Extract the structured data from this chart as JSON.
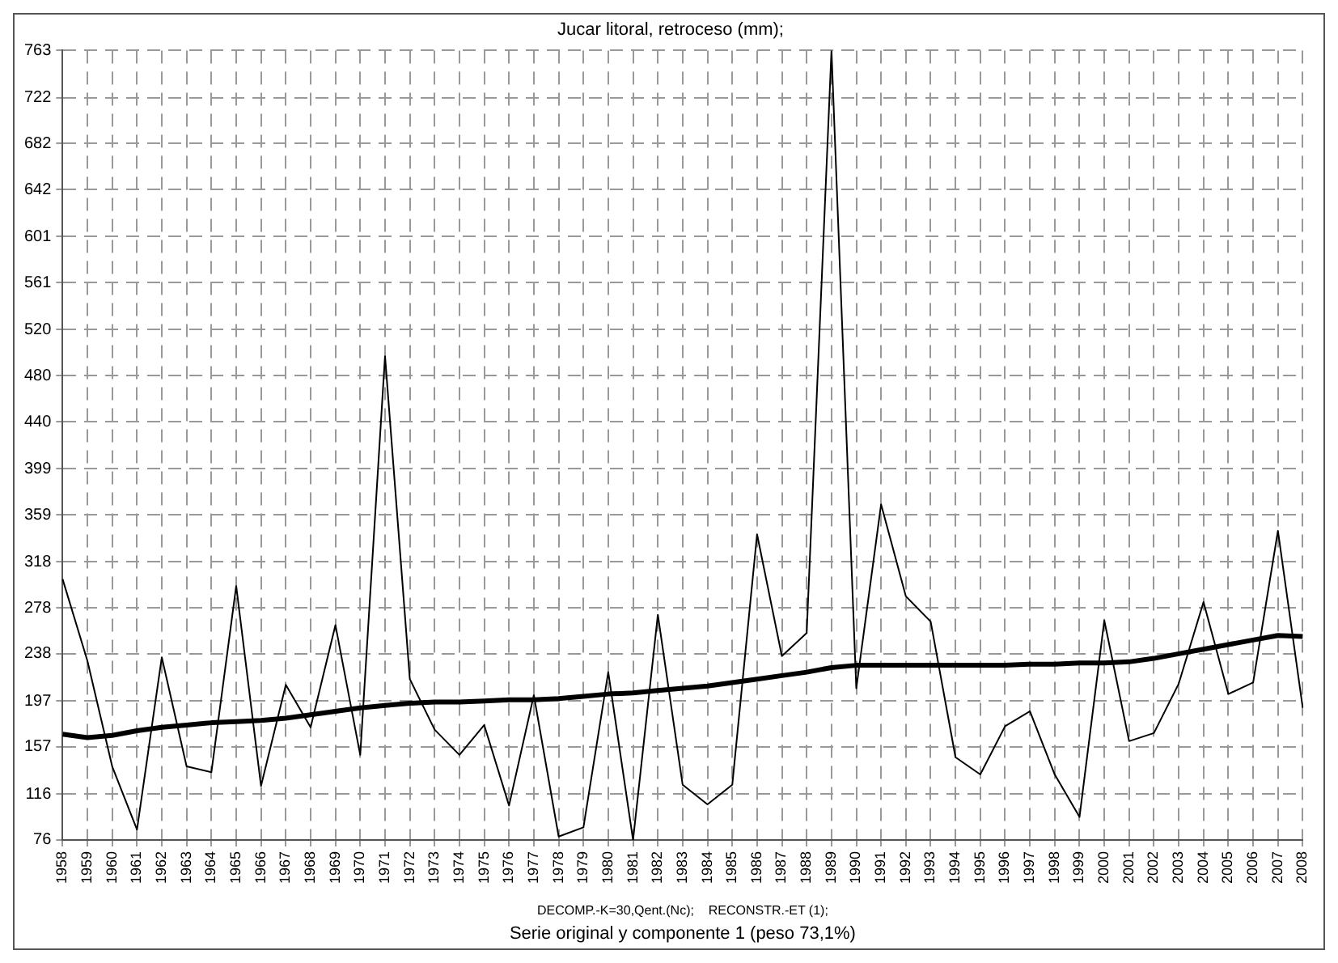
{
  "chart_data": {
    "type": "line",
    "title": "Jucar litoral, retroceso (mm);",
    "annotations": [
      "DECOMP.-K=30,Qent.(Nc);    RECONSTR.-ET (1);",
      "Serie original y componente 1 (peso 73,1%)"
    ],
    "categories": [
      "1958",
      "1959",
      "1960",
      "1961",
      "1962",
      "1963",
      "1964",
      "1965",
      "1966",
      "1967",
      "1968",
      "1969",
      "1970",
      "1971",
      "1972",
      "1973",
      "1974",
      "1975",
      "1976",
      "1977",
      "1978",
      "1979",
      "1980",
      "1981",
      "1982",
      "1983",
      "1984",
      "1985",
      "1986",
      "1987",
      "1988",
      "1989",
      "1990",
      "1991",
      "1992",
      "1993",
      "1994",
      "1995",
      "1996",
      "1997",
      "1998",
      "1999",
      "2000",
      "2001",
      "2002",
      "2003",
      "2004",
      "2005",
      "2006",
      "2007",
      "2008"
    ],
    "series": [
      {
        "color": "#000000",
        "values": [
          303,
          232,
          140,
          85,
          235,
          140,
          135,
          297,
          123,
          211,
          174,
          263,
          150,
          497,
          216,
          172,
          150,
          176,
          106,
          202,
          79,
          87,
          222,
          76,
          272,
          124,
          107,
          124,
          342,
          236,
          256,
          763,
          208,
          368,
          288,
          266,
          148,
          133,
          175,
          188,
          133,
          96,
          267,
          162,
          169,
          212,
          283,
          203,
          213,
          345,
          191
        ]
      },
      {
        "color": "#000000",
        "type": "line",
        "values": [
          168,
          165,
          167,
          171,
          174,
          176,
          178,
          179,
          180,
          182,
          185,
          188,
          191,
          193,
          195,
          196,
          196,
          197,
          198,
          198,
          199,
          201,
          203,
          204,
          206,
          208,
          210,
          213,
          216,
          219,
          222,
          226,
          228,
          228,
          228,
          228,
          228,
          228,
          228,
          229,
          229,
          230,
          230,
          231,
          234,
          238,
          242,
          246,
          250,
          254,
          253
        ]
      }
    ],
    "ylim": [
      76,
      763
    ],
    "yticks": [
      76,
      116,
      157,
      197,
      238,
      278,
      318,
      359,
      399,
      440,
      480,
      520,
      561,
      601,
      642,
      682,
      722,
      763
    ],
    "grid": true,
    "legend": false,
    "marker": "none",
    "line_style": "solid"
  }
}
